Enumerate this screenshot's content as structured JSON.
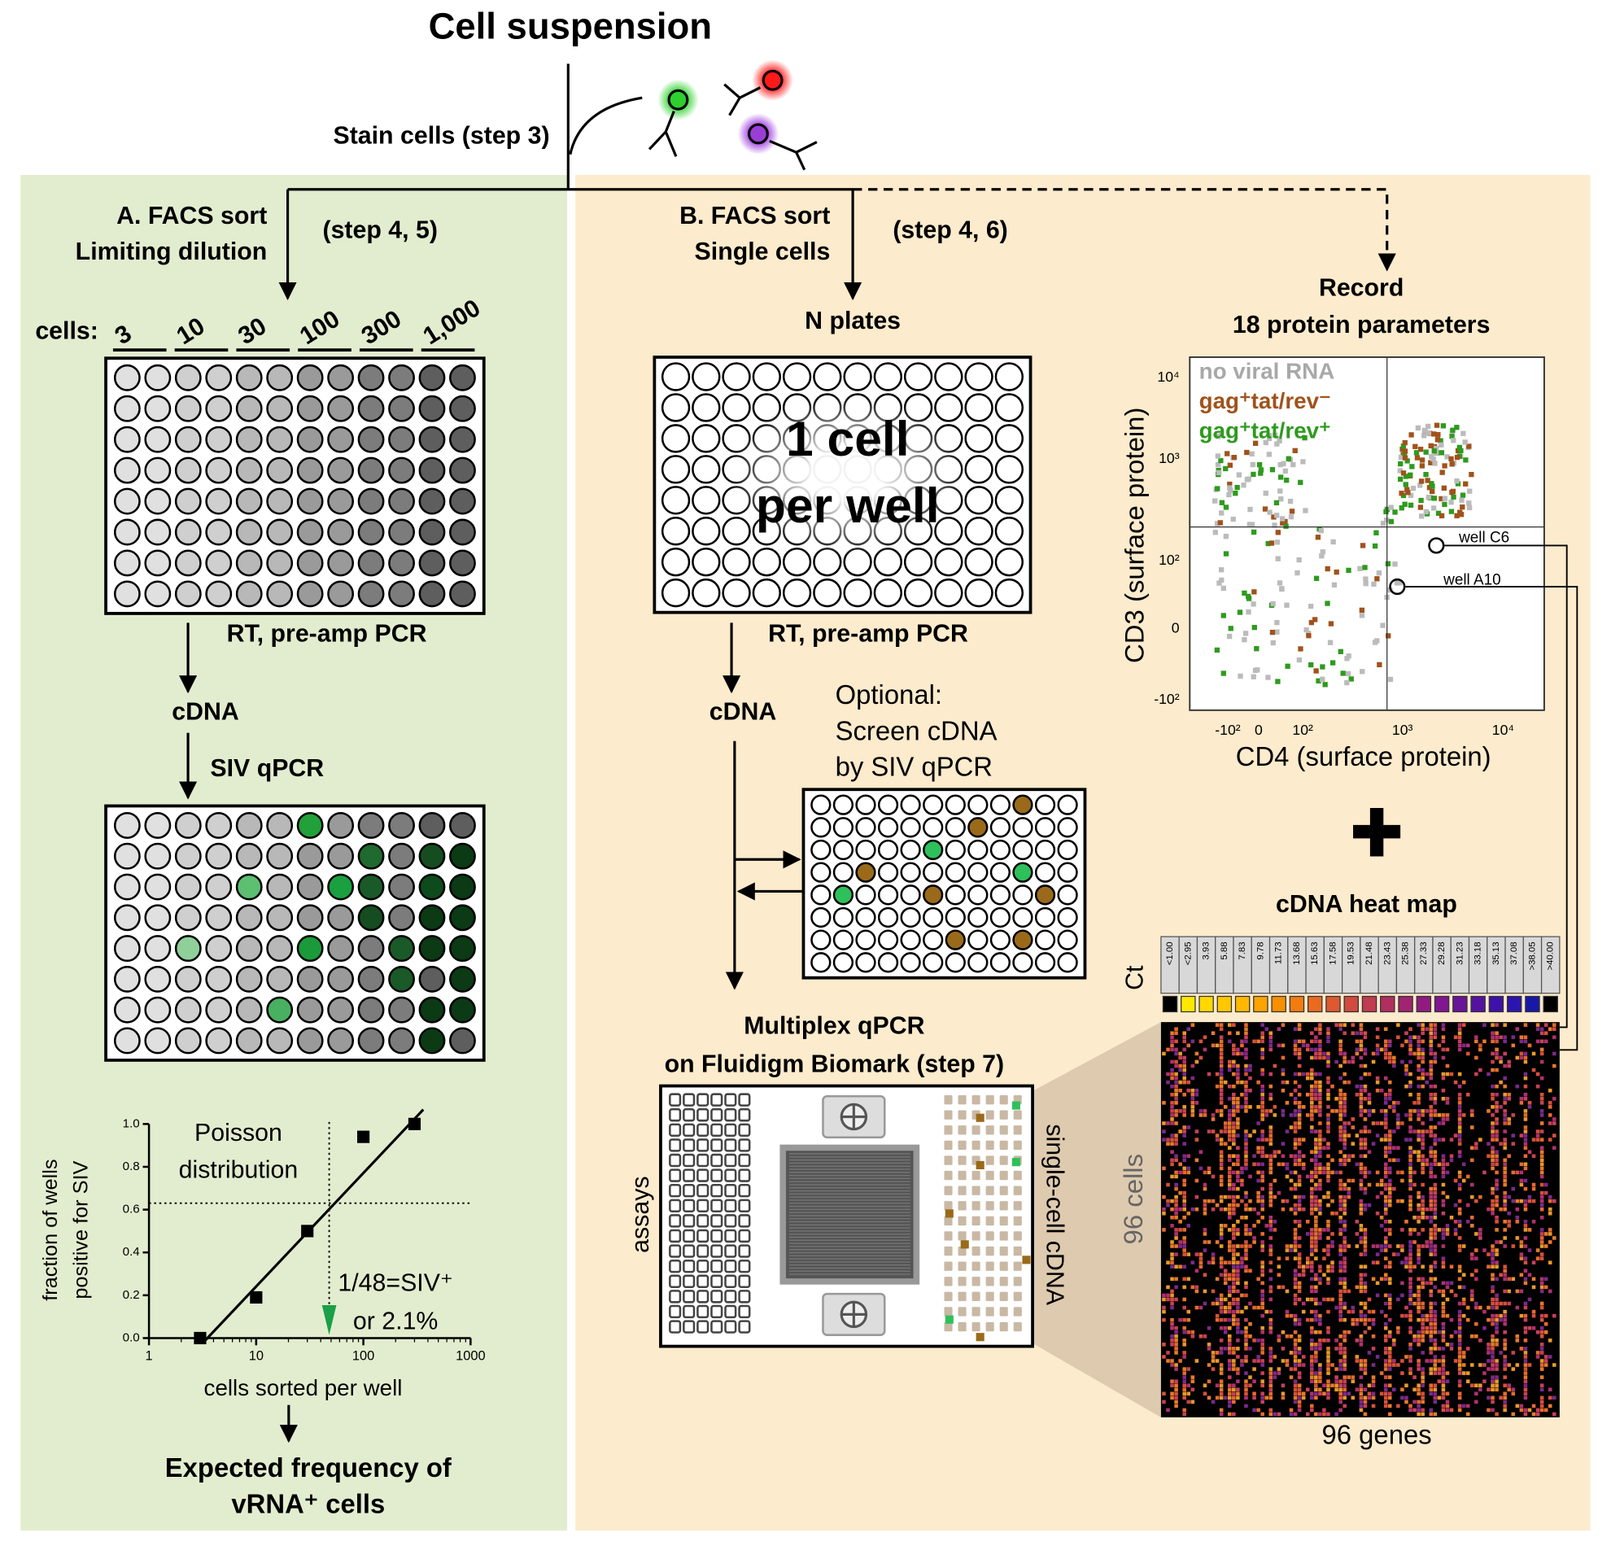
{
  "title": "Cell suspension",
  "stain": "Stain cells (step 3)",
  "panel_a": {
    "title_lines": [
      "A. FACS sort",
      "Limiting dilution"
    ],
    "step": "(step 4, 5)",
    "cells_label": "cells:",
    "cell_counts": [
      "3",
      "10",
      "30",
      "100",
      "300",
      "1,000"
    ],
    "rt": "RT, pre-amp PCR",
    "cdna": "cDNA",
    "qpcr": "SIV qPCR",
    "result_lines": [
      "Expected frequency of",
      "vRNA⁺ cells"
    ]
  },
  "poisson": {
    "y_label_lines": [
      "fraction of wells",
      "positive for SIV"
    ],
    "x_label": "cells sorted per well",
    "annotation_lines": [
      "Poisson",
      "distribution"
    ],
    "estimate_lines": [
      "1/48=SIV⁺",
      "or 2.1%"
    ],
    "xlim": [
      1,
      1000
    ],
    "xticks": [
      1,
      10,
      100,
      1000
    ],
    "ylim": [
      0,
      1
    ],
    "yticks": [
      {
        "value": 0,
        "label": "0.0"
      },
      {
        "value": 0.2,
        "label": "0.2"
      },
      {
        "value": 0.4,
        "label": "0.4"
      },
      {
        "value": 0.6,
        "label": "0.6"
      },
      {
        "value": 0.8,
        "label": "0.8"
      },
      {
        "value": 1,
        "label": "1.0"
      }
    ],
    "x": [
      3,
      10,
      30,
      100,
      300
    ],
    "values": [
      0,
      0.19,
      0.5,
      0.94,
      1
    ],
    "threshold": 0.63,
    "estimate_x": 48
  },
  "panel_b": {
    "title_lines": [
      "B. FACS sort",
      "Single cells"
    ],
    "step": "(step 4, 6)",
    "plates": "N plates",
    "plate_text_lines": [
      "1 cell",
      "per well"
    ],
    "rt": "RT, pre-amp PCR",
    "cdna": "cDNA",
    "optional_lines": [
      "Optional:",
      "Screen cDNA",
      "by SIV qPCR"
    ],
    "multiplex_lines": [
      "Multiplex qPCR",
      "on Fluidigm Biomark (step 7)"
    ],
    "assays": "assays",
    "single_cell": "single-cell cDNA"
  },
  "record_lines": [
    "Record",
    "18 protein parameters"
  ],
  "scatter": {
    "legend": [
      {
        "name": "no viral RNA",
        "color": "#a8a8a8"
      },
      {
        "name": "gag⁺tat/rev⁻",
        "color": "#a0521c"
      },
      {
        "name": "gag⁺tat/rev⁺",
        "color": "#2e9a1e"
      }
    ],
    "x_label": "CD4 (surface protein)",
    "y_label": "CD3 (surface protein)",
    "xtick_labels": [
      "-10²",
      "0",
      "10²",
      "10³",
      "10⁴"
    ],
    "ytick_labels": [
      "10⁴",
      "10³",
      "10²",
      "0",
      "-10²"
    ],
    "wells": [
      "well C6",
      "well A10"
    ]
  },
  "heatmap": {
    "title": "cDNA heat map",
    "ct_label": "Ct",
    "ct_values": [
      "<1.00",
      "<2.95",
      "3.93",
      "5.88",
      "7.83",
      "9.78",
      "11.73",
      "13.68",
      "15.63",
      "17.58",
      "19.53",
      "21.48",
      "23.43",
      "25.38",
      "27.33",
      "29.28",
      "31.23",
      "33.18",
      "35.13",
      "37.08",
      ">38.05",
      ">40.00"
    ],
    "ct_colors": [
      "#000000",
      "#ffe800",
      "#ffd800",
      "#ffc800",
      "#ffb800",
      "#fca400",
      "#f79000",
      "#f27c10",
      "#ea6a20",
      "#de5830",
      "#d04a40",
      "#c03c50",
      "#b02e60",
      "#a02470",
      "#901c80",
      "#801690",
      "#6a1498",
      "#5412a0",
      "#3e12a8",
      "#2c14b0",
      "#1818a8",
      "#000000"
    ],
    "rows_label": "96 cells",
    "cols_label": "96 genes"
  }
}
